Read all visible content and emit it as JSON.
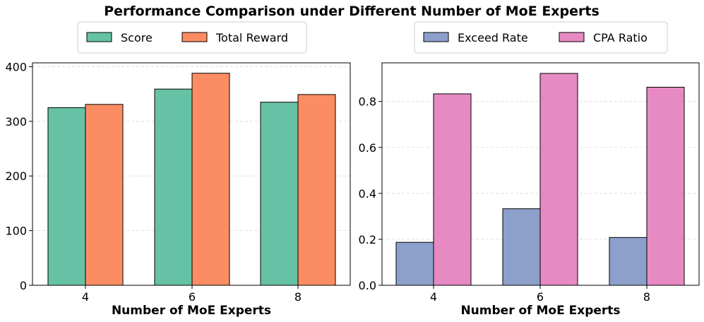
{
  "figure_title": "Performance Comparison under Different Number of MoE Experts",
  "colors": {
    "score": "#66c2a5",
    "total_reward": "#fc8d62",
    "exceed_rate": "#8da0cb",
    "cpa_ratio": "#e78ac3",
    "grid": "#d9d9d9",
    "axis": "#000000"
  },
  "chart_data": [
    {
      "type": "bar",
      "title": "",
      "xlabel": "Number of MoE Experts",
      "ylabel": "",
      "categories": [
        "4",
        "6",
        "8"
      ],
      "series": [
        {
          "name": "Score",
          "values": [
            325,
            359,
            335
          ]
        },
        {
          "name": "Total Reward",
          "values": [
            331,
            388,
            349
          ]
        }
      ],
      "ylim": [
        0,
        407
      ],
      "yticks": [
        0,
        100,
        200,
        300,
        400
      ],
      "ytick_labels": [
        "0",
        "100",
        "200",
        "300",
        "400"
      ],
      "grid": true,
      "legend": "top-center, outside"
    },
    {
      "type": "bar",
      "title": "",
      "xlabel": "Number of MoE Experts",
      "ylabel": "",
      "categories": [
        "4",
        "6",
        "8"
      ],
      "series": [
        {
          "name": "Exceed Rate",
          "values": [
            0.187,
            0.333,
            0.208
          ]
        },
        {
          "name": "CPA Ratio",
          "values": [
            0.833,
            0.922,
            0.862
          ]
        }
      ],
      "ylim": [
        0,
        0.968
      ],
      "yticks": [
        0,
        0.2,
        0.4,
        0.6,
        0.8
      ],
      "ytick_labels": [
        "0.0",
        "0.2",
        "0.4",
        "0.6",
        "0.8"
      ],
      "grid": true,
      "legend": "top-center, outside"
    }
  ]
}
